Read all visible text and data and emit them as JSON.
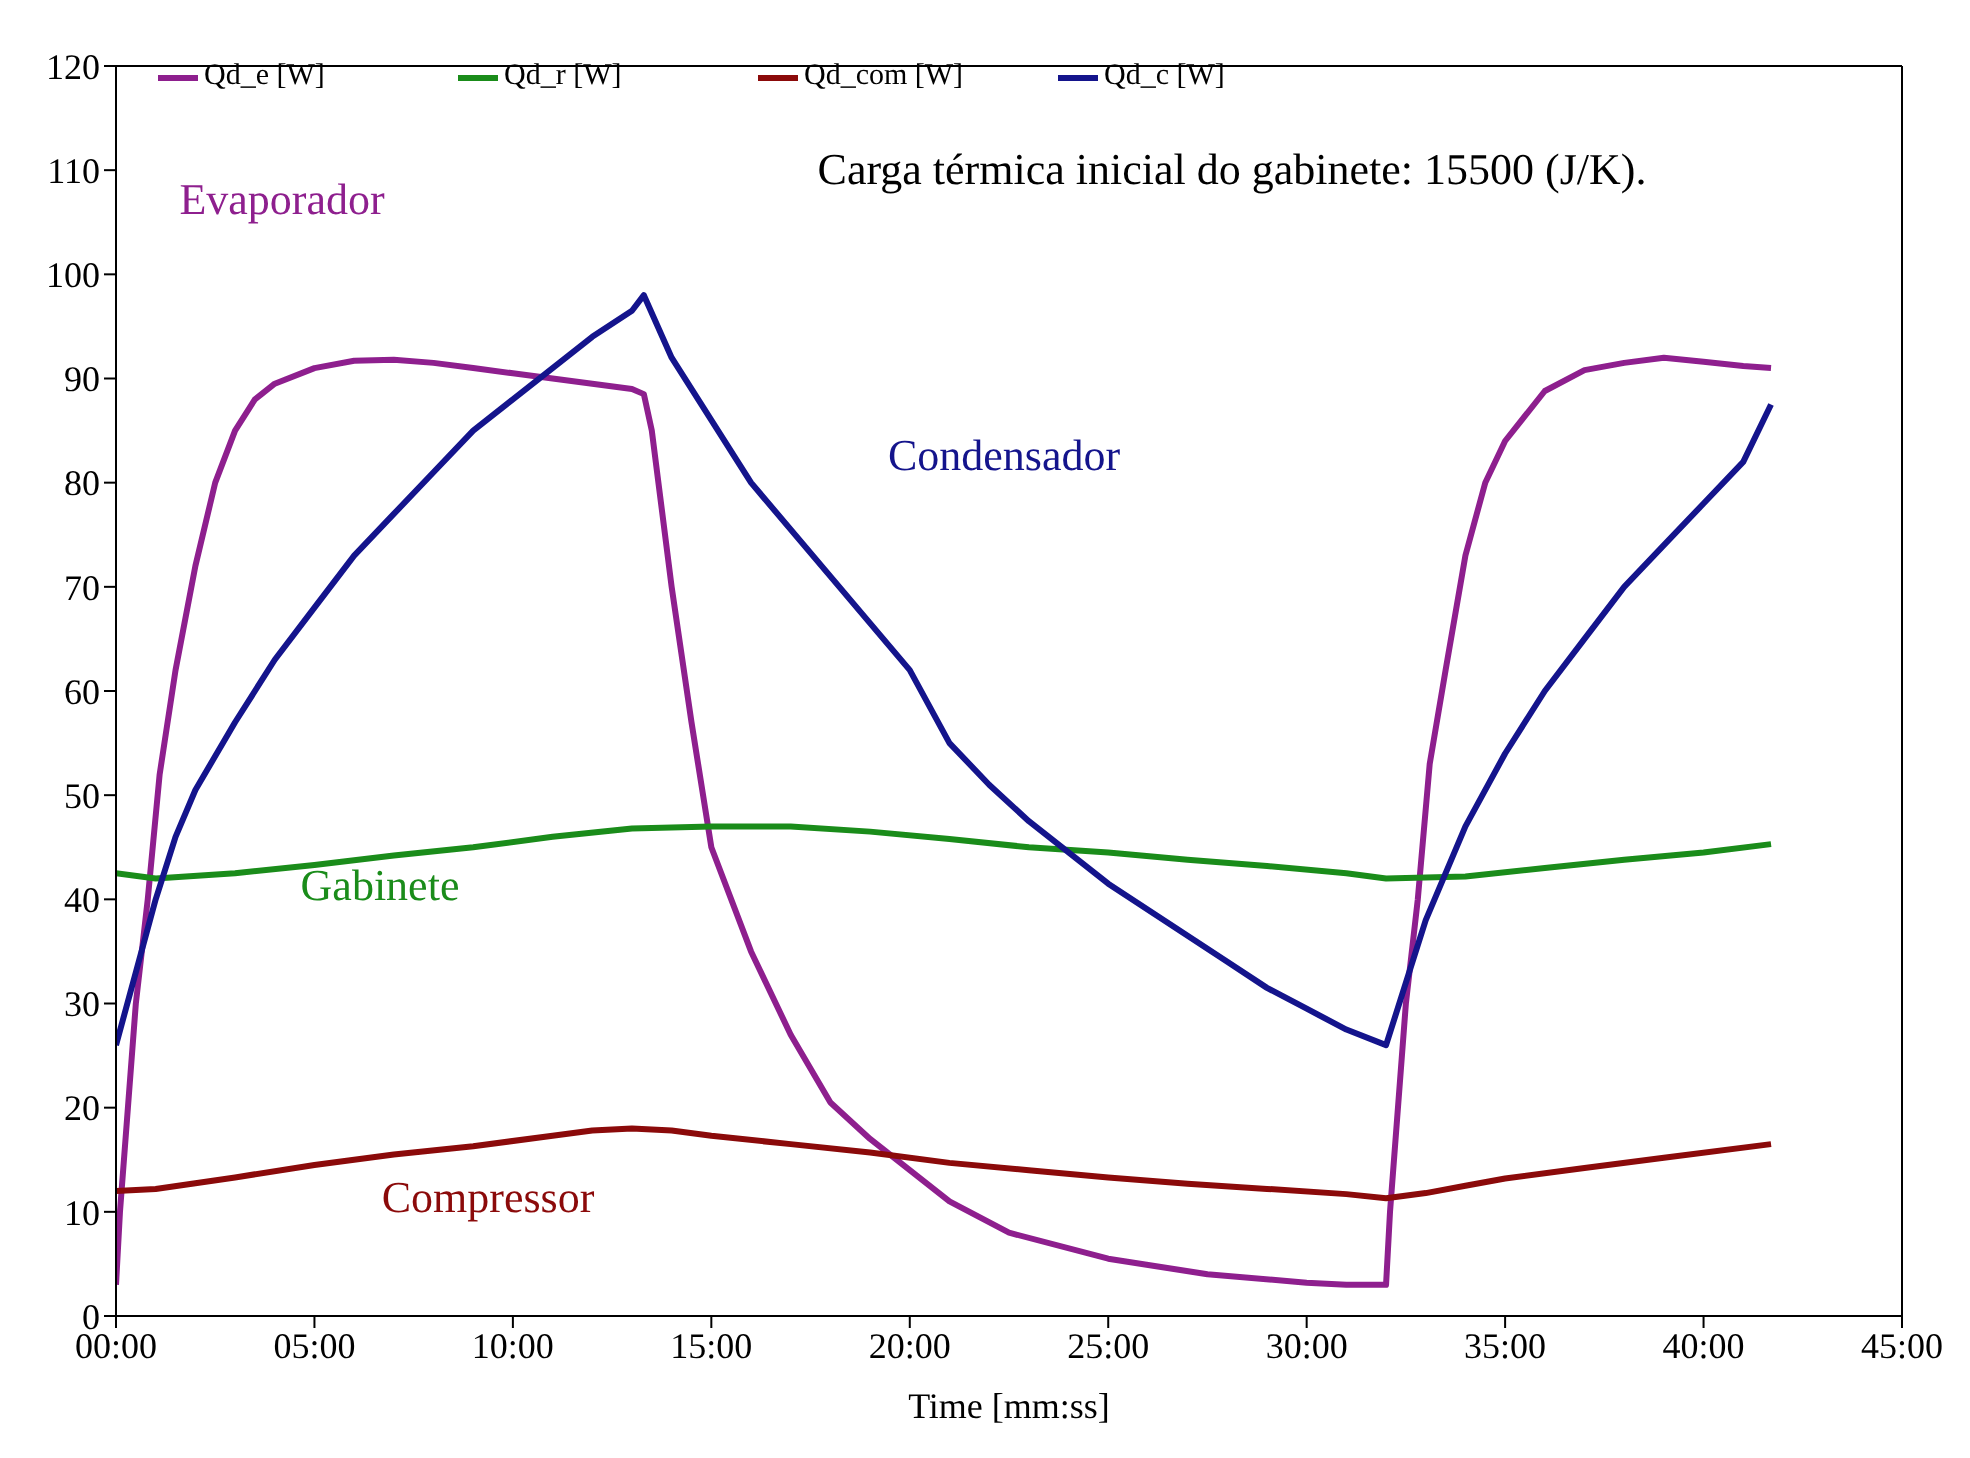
{
  "chart_data": {
    "type": "line",
    "xlabel": "Time [mm:ss]",
    "xlim": [
      0,
      45
    ],
    "xticks": [
      {
        "value": 0,
        "label": "00:00"
      },
      {
        "value": 5,
        "label": "05:00"
      },
      {
        "value": 10,
        "label": "10:00"
      },
      {
        "value": 15,
        "label": "15:00"
      },
      {
        "value": 20,
        "label": "20:00"
      },
      {
        "value": 25,
        "label": "25:00"
      },
      {
        "value": 30,
        "label": "30:00"
      },
      {
        "value": 35,
        "label": "35:00"
      },
      {
        "value": 40,
        "label": "40:00"
      },
      {
        "value": 45,
        "label": "45:00"
      }
    ],
    "ylim": [
      0,
      120
    ],
    "yticks": [
      0,
      10,
      20,
      30,
      40,
      50,
      60,
      70,
      80,
      90,
      100,
      110,
      120
    ],
    "legend": "top left",
    "marker": "none",
    "line_style": "solid",
    "series": [
      {
        "name": "Qd_e [W]",
        "color": "#8e1f8e",
        "x": [
          0,
          0.1,
          0.3,
          0.5,
          0.8,
          1.1,
          1.5,
          2,
          2.5,
          3,
          3.5,
          4,
          5,
          6,
          7,
          8,
          9,
          10,
          11,
          12,
          13,
          13.3,
          13.5,
          14,
          14.5,
          15,
          16,
          17,
          18,
          19,
          20,
          21,
          22.5,
          25,
          27.5,
          30,
          31,
          32,
          32.1,
          32.3,
          32.5,
          32.8,
          33.1,
          33.5,
          34,
          34.5,
          35,
          36,
          37,
          38,
          39,
          40,
          41,
          41.7
        ],
        "values": [
          3,
          10,
          20,
          30,
          40,
          52,
          62,
          72,
          80,
          85,
          88,
          89.5,
          91,
          91.7,
          91.8,
          91.5,
          91,
          90.5,
          90,
          89.5,
          89,
          88.5,
          85,
          70,
          57,
          45,
          35,
          27,
          20.5,
          17,
          14,
          11,
          8,
          5.5,
          4,
          3.2,
          3,
          3,
          10,
          20,
          30,
          40,
          53,
          62,
          73,
          80,
          84,
          88.8,
          90.8,
          91.5,
          92,
          91.6,
          91.2,
          91
        ]
      },
      {
        "name": "Qd_r [W]",
        "color": "#1a8c1a",
        "x": [
          0,
          1,
          3,
          5,
          7,
          9,
          11,
          13,
          15,
          17,
          19,
          21,
          23,
          25,
          27,
          29,
          31,
          32,
          34,
          36,
          38,
          40,
          41.7
        ],
        "values": [
          42.5,
          42,
          42.5,
          43.3,
          44.2,
          45,
          46,
          46.8,
          47,
          47,
          46.5,
          45.8,
          45,
          44.5,
          43.8,
          43.2,
          42.5,
          42,
          42.2,
          43,
          43.8,
          44.5,
          45.3
        ]
      },
      {
        "name": "Qd_com [W]",
        "color": "#8b0a0a",
        "x": [
          0,
          1,
          3,
          5,
          7,
          9,
          11,
          12,
          13,
          14,
          15,
          17,
          19,
          21,
          23,
          25,
          27,
          29,
          31,
          32,
          33,
          34,
          35,
          37,
          39,
          41.7
        ],
        "values": [
          12,
          12.2,
          13.3,
          14.5,
          15.5,
          16.3,
          17.3,
          17.8,
          18,
          17.8,
          17.3,
          16.5,
          15.7,
          14.7,
          14,
          13.3,
          12.7,
          12.2,
          11.7,
          11.3,
          11.8,
          12.5,
          13.2,
          14.2,
          15.2,
          16.5
        ]
      },
      {
        "name": "Qd_c [W]",
        "color": "#14148c",
        "x": [
          0,
          0.5,
          1,
          1.5,
          2,
          3,
          4,
          5,
          6,
          7,
          8,
          9,
          10,
          11,
          12,
          13,
          13.3,
          14,
          15,
          16,
          18,
          20,
          21,
          22,
          23,
          24,
          25,
          26,
          27,
          28,
          29,
          30,
          31,
          32,
          32.5,
          33,
          34,
          35,
          36,
          37,
          38,
          39,
          40,
          41,
          41.7
        ],
        "values": [
          26,
          33,
          40,
          46,
          50.5,
          57,
          63,
          68,
          73,
          77,
          81,
          85,
          88,
          91,
          94,
          96.5,
          98,
          92,
          86,
          80,
          71,
          62,
          55,
          51,
          47.5,
          44.5,
          41.5,
          39,
          36.5,
          34,
          31.5,
          29.5,
          27.5,
          26,
          32,
          38,
          47,
          54,
          60,
          65,
          70,
          74,
          78,
          82,
          87.5
        ]
      }
    ],
    "annotations": [
      "Evaporador",
      "Condensador",
      "Gabinete",
      "Compressor",
      "Carga térmica inicial do gabinete: 15500 (J/K)."
    ]
  }
}
